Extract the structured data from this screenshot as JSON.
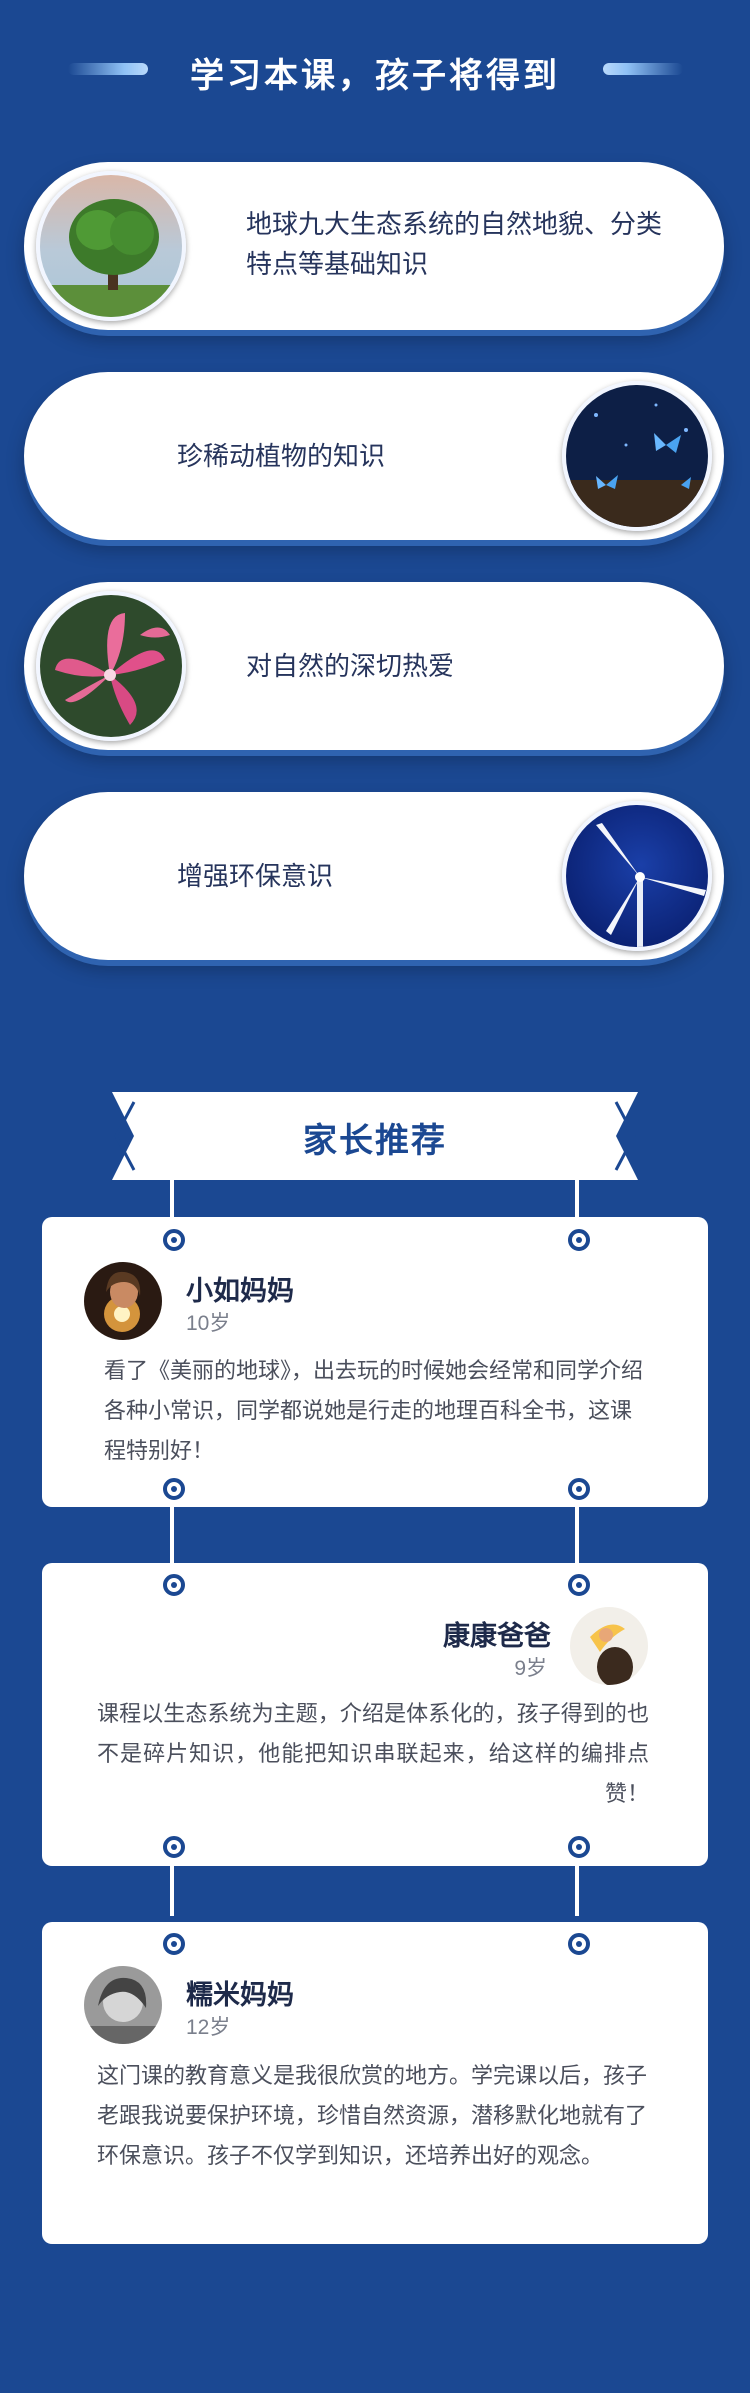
{
  "benefits": {
    "title": "学习本课，孩子将得到",
    "items": [
      {
        "text": "地球九大生态系统的自然地貌、分类特点等基础知识",
        "image": "tree-photo"
      },
      {
        "text": "珍稀动植物的知识",
        "image": "butterfly-photo"
      },
      {
        "text": "对自然的深切热爱",
        "image": "lily-flower-photo"
      },
      {
        "text": "增强环保意识",
        "image": "wind-turbine-photo"
      }
    ]
  },
  "reviews": {
    "title": "家长推荐",
    "items": [
      {
        "name": "小如妈妈",
        "age": "10岁",
        "text": "看了《美丽的地球》，出去玩的时候她会经常和同学介绍各种小常识，同学都说她是行走的地理百科全书，这课程特别好！",
        "avatar": "girl-with-sparkler-avatar"
      },
      {
        "name": "康康爸爸",
        "age": "9岁",
        "text": "课程以生态系统为主题，介绍是体系化的，孩子得到的也不是碎片知识，他能把知识串联起来，给这样的编排点赞！",
        "avatar": "child-with-bird-avatar"
      },
      {
        "name": "糯米妈妈",
        "age": "12岁",
        "text": "这门课的教育意义是我很欣赏的地方。学完课以后，孩子老跟我说要保护环境，珍惜自然资源，潜移默化地就有了环保意识。孩子不仅学到知识，还培养出好的观念。",
        "avatar": "grayscale-portrait-avatar"
      }
    ]
  },
  "colors": {
    "background": "#1b4892",
    "card": "#ffffff",
    "text_dark": "#26345c"
  }
}
